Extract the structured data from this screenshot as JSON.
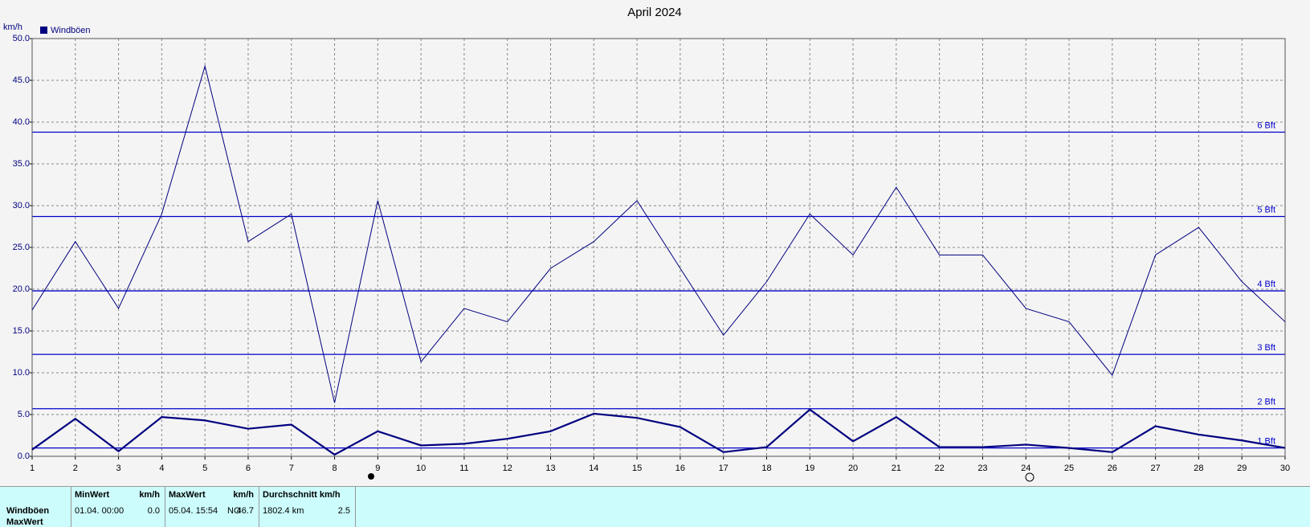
{
  "chart_data": {
    "type": "line",
    "title": "April 2024",
    "y_label": "km/h",
    "x": [
      1,
      2,
      3,
      4,
      5,
      6,
      7,
      8,
      9,
      10,
      11,
      12,
      13,
      14,
      15,
      16,
      17,
      18,
      19,
      20,
      21,
      22,
      23,
      24,
      25,
      26,
      27,
      28,
      29,
      30
    ],
    "series": [
      {
        "name": "Windböen",
        "color": "#000080",
        "values": [
          17.5,
          25.7,
          17.7,
          29.0,
          46.7,
          25.7,
          29.0,
          6.4,
          30.6,
          11.3,
          17.7,
          16.1,
          22.5,
          25.7,
          30.6,
          22.5,
          14.5,
          20.9,
          29.0,
          24.1,
          32.2,
          24.1,
          24.1,
          17.7,
          16.1,
          9.7,
          24.1,
          27.4,
          20.9,
          16.1
        ]
      },
      {
        "color": "#000080",
        "values": [
          0.8,
          4.5,
          0.6,
          4.7,
          4.3,
          3.3,
          3.8,
          0.2,
          3.0,
          1.3,
          1.5,
          2.1,
          3.0,
          5.1,
          4.6,
          3.5,
          0.5,
          1.1,
          5.6,
          1.8,
          4.7,
          1.1,
          1.1,
          1.4,
          1.0,
          0.5,
          3.6,
          2.6,
          1.9,
          1.0
        ]
      }
    ],
    "xlim": [
      1,
      30
    ],
    "xticks": [
      1,
      2,
      3,
      4,
      5,
      6,
      7,
      8,
      9,
      10,
      11,
      12,
      13,
      14,
      15,
      16,
      17,
      18,
      19,
      20,
      21,
      22,
      23,
      24,
      25,
      26,
      27,
      28,
      29,
      30
    ],
    "ylim": [
      0,
      50
    ],
    "yticks": [
      {
        "value": 0,
        "label": "0.0"
      },
      {
        "value": 5,
        "label": "5.0"
      },
      {
        "value": 10,
        "label": "10.0"
      },
      {
        "value": 15,
        "label": "15.0"
      },
      {
        "value": 20,
        "label": "20.0"
      },
      {
        "value": 25,
        "label": "25.0"
      },
      {
        "value": 30,
        "label": "30.0"
      },
      {
        "value": 35,
        "label": "35.0"
      },
      {
        "value": 40,
        "label": "40.0"
      },
      {
        "value": 45,
        "label": "45.0"
      },
      {
        "value": 50,
        "label": "50.0"
      }
    ],
    "grid": true,
    "reference_lines": [
      {
        "value": 1.0,
        "label": "1 Bft"
      },
      {
        "value": 5.7,
        "label": "2 Bft"
      },
      {
        "value": 12.2,
        "label": "3 Bft"
      },
      {
        "value": 19.8,
        "label": "4 Bft"
      },
      {
        "value": 28.7,
        "label": "5 Bft"
      },
      {
        "value": 38.8,
        "label": "6 Bft"
      }
    ],
    "reference_color": "#0000cc"
  },
  "table": {
    "headers": [
      [
        "MinWert",
        "km/h"
      ],
      [
        "MaxWert",
        "km/h"
      ],
      [
        "Durchschnitt km/h"
      ]
    ],
    "rows": [
      [
        "Windböen",
        "01.04.  00:00",
        "0.0",
        "05.04.  15:54",
        "NO",
        "46.7",
        "1802.4 km",
        "2.5"
      ],
      [
        "MaxWert"
      ]
    ]
  }
}
